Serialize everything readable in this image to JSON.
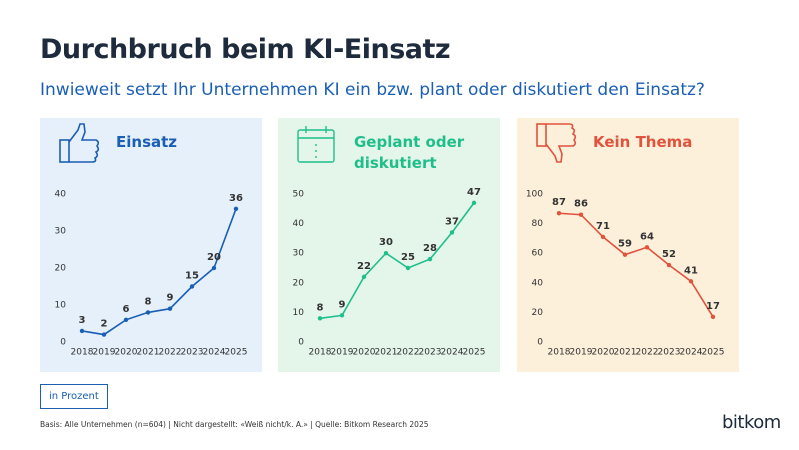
{
  "header": {
    "title": "Durchbruch beim KI-Einsatz",
    "subtitle": "Inwieweit setzt Ihr Unternehmen KI ein bzw. plant oder diskutiert den Einsatz?"
  },
  "chart_data": [
    {
      "type": "line",
      "title": "Einsatz",
      "color": "#1a5fb4",
      "background": "#e6f0fb",
      "categories": [
        "2018",
        "2019",
        "2020",
        "2021",
        "2022",
        "2023",
        "2024",
        "2025"
      ],
      "values": [
        3,
        2,
        6,
        8,
        9,
        15,
        20,
        36
      ],
      "ylim": [
        0,
        40
      ],
      "yticks": [
        0,
        10,
        20,
        30,
        40
      ]
    },
    {
      "type": "line",
      "title": "Geplant oder diskutiert",
      "color": "#1fbf8c",
      "background": "#e4f5ea",
      "categories": [
        "2018",
        "2019",
        "2020",
        "2021",
        "2022",
        "2023",
        "2024",
        "2025"
      ],
      "values": [
        8,
        9,
        22,
        30,
        25,
        28,
        37,
        47
      ],
      "ylim": [
        0,
        50
      ],
      "yticks": [
        0,
        10,
        20,
        30,
        40,
        50
      ]
    },
    {
      "type": "line",
      "title": "Kein Thema",
      "color": "#e0533d",
      "background": "#fcf0db",
      "categories": [
        "2018",
        "2019",
        "2020",
        "2021",
        "2022",
        "2023",
        "2024",
        "2025"
      ],
      "values": [
        87,
        86,
        71,
        59,
        64,
        52,
        41,
        17
      ],
      "ylim": [
        0,
        100
      ],
      "yticks": [
        0,
        20,
        40,
        60,
        80,
        100
      ]
    }
  ],
  "unit_note": "in Prozent",
  "footnote": "Basis: Alle Unternehmen (n=604) | Nicht dargestellt: «Weiß nicht/k. A.» | Quelle: Bitkom Research 2025",
  "logo": "bitkom"
}
